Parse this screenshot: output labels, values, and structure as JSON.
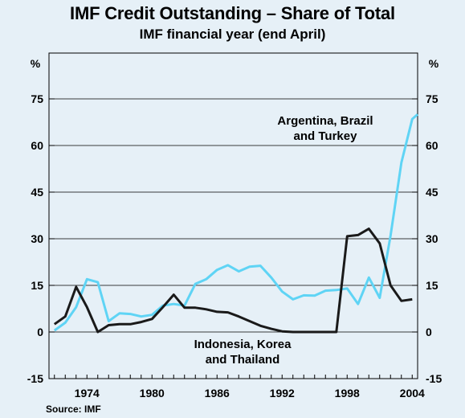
{
  "title": "IMF Credit Outstanding – Share of Total",
  "subtitle": "IMF financial year (end April)",
  "source": "Source: IMF",
  "chart_data": {
    "type": "line",
    "title": "IMF Credit Outstanding – Share of Total",
    "subtitle": "IMF financial year (end April)",
    "y_unit_left": "%",
    "y_unit_right": "%",
    "ylim": [
      -15,
      75
    ],
    "xlim": [
      1970.5,
      2004.5
    ],
    "yticks": [
      -15,
      0,
      15,
      30,
      45,
      60,
      75
    ],
    "xticks": [
      1974,
      1980,
      1986,
      1992,
      1998,
      2004
    ],
    "grid": true,
    "series": [
      {
        "name": "Indonesia, Korea and Thailand",
        "label_lines": [
          "Indonesia, Korea",
          "and Thailand"
        ],
        "color": "#1a1a1a",
        "points": [
          [
            1971,
            2.5
          ],
          [
            1972,
            5
          ],
          [
            1973,
            14.5
          ],
          [
            1974,
            8
          ],
          [
            1975,
            0
          ],
          [
            1976,
            2.2
          ],
          [
            1977,
            2.5
          ],
          [
            1978,
            2.5
          ],
          [
            1979,
            3.2
          ],
          [
            1980,
            4.2
          ],
          [
            1981,
            8
          ],
          [
            1982,
            12
          ],
          [
            1983,
            7.8
          ],
          [
            1984,
            7.8
          ],
          [
            1985,
            7.3
          ],
          [
            1986,
            6.5
          ],
          [
            1987,
            6.3
          ],
          [
            1988,
            5
          ],
          [
            1989,
            3.5
          ],
          [
            1990,
            2
          ],
          [
            1991,
            1
          ],
          [
            1992,
            0.2
          ],
          [
            1993,
            0
          ],
          [
            1994,
            0
          ],
          [
            1995,
            0
          ],
          [
            1996,
            0
          ],
          [
            1997,
            0
          ],
          [
            1998,
            30.8
          ],
          [
            1999,
            31.2
          ],
          [
            2000,
            33.2
          ],
          [
            2001,
            28.5
          ],
          [
            2002,
            15
          ],
          [
            2003,
            10
          ],
          [
            2004,
            10.5
          ]
        ]
      },
      {
        "name": "Argentina, Brazil and Turkey",
        "label_lines": [
          "Argentina, Brazil",
          "and Turkey"
        ],
        "color": "#5fd4f5",
        "points": [
          [
            1971,
            0.5
          ],
          [
            1972,
            3
          ],
          [
            1973,
            8
          ],
          [
            1974,
            17
          ],
          [
            1975,
            16
          ],
          [
            1976,
            3.5
          ],
          [
            1977,
            6
          ],
          [
            1978,
            5.8
          ],
          [
            1979,
            5
          ],
          [
            1980,
            5.5
          ],
          [
            1981,
            8.5
          ],
          [
            1982,
            9
          ],
          [
            1983,
            8.5
          ],
          [
            1984,
            15.5
          ],
          [
            1985,
            17
          ],
          [
            1986,
            20
          ],
          [
            1987,
            21.5
          ],
          [
            1988,
            19.5
          ],
          [
            1989,
            21
          ],
          [
            1990,
            21.3
          ],
          [
            1991,
            17.5
          ],
          [
            1992,
            13
          ],
          [
            1993,
            10.5
          ],
          [
            1994,
            11.8
          ],
          [
            1995,
            11.7
          ],
          [
            1996,
            13.3
          ],
          [
            1997,
            13.5
          ],
          [
            1998,
            14
          ],
          [
            1999,
            9
          ],
          [
            2000,
            17.5
          ],
          [
            2001,
            11
          ],
          [
            2002,
            31
          ],
          [
            2003,
            54.5
          ],
          [
            2004,
            68.5
          ],
          [
            2004.5,
            70
          ]
        ]
      }
    ]
  }
}
